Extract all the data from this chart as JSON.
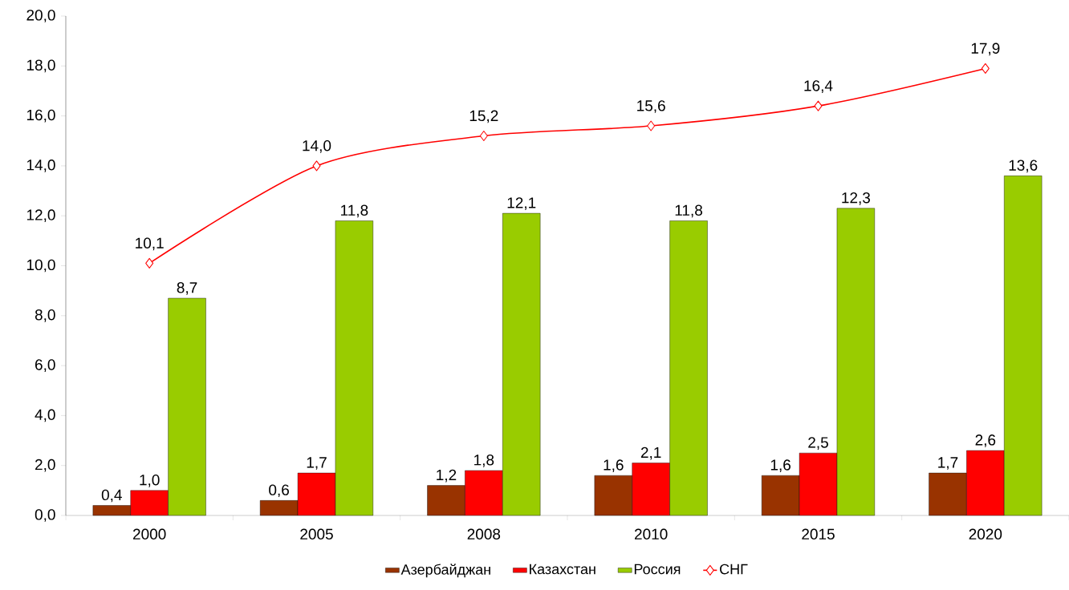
{
  "chart_data": {
    "type": "bar",
    "categories": [
      "2000",
      "2005",
      "2008",
      "2010",
      "2015",
      "2020"
    ],
    "series": [
      {
        "name": "Азербайджан",
        "color": "#993300",
        "values": [
          0.4,
          0.6,
          1.2,
          1.6,
          1.6,
          1.7
        ],
        "value_labels": [
          "0,4",
          "0,6",
          "1,2",
          "1,6",
          "1,6",
          "1,7"
        ]
      },
      {
        "name": "Казахстан",
        "color": "#ff0000",
        "values": [
          1.0,
          1.7,
          1.8,
          2.1,
          2.5,
          2.6
        ],
        "value_labels": [
          "1,0",
          "1,7",
          "1,8",
          "2,1",
          "2,5",
          "2,6"
        ]
      },
      {
        "name": "Россия",
        "color": "#99cc00",
        "values": [
          8.7,
          11.8,
          12.1,
          11.8,
          12.3,
          13.6
        ],
        "value_labels": [
          "8,7",
          "11,8",
          "12,1",
          "11,8",
          "12,3",
          "13,6"
        ]
      },
      {
        "name": "СНГ",
        "type": "line",
        "color": "#ff0000",
        "marker": "diamond",
        "values": [
          10.1,
          14.0,
          15.2,
          15.6,
          16.4,
          17.9
        ],
        "value_labels": [
          "10,1",
          "14,0",
          "15,2",
          "15,6",
          "16,4",
          "17,9"
        ]
      }
    ],
    "ylim": [
      0,
      20
    ],
    "yticks": [
      {
        "value": 0,
        "label": "0,0"
      },
      {
        "value": 2,
        "label": "2,0"
      },
      {
        "value": 4,
        "label": "4,0"
      },
      {
        "value": 6,
        "label": "6,0"
      },
      {
        "value": 8,
        "label": "8,0"
      },
      {
        "value": 10,
        "label": "10,0"
      },
      {
        "value": 12,
        "label": "12,0"
      },
      {
        "value": 14,
        "label": "14,0"
      },
      {
        "value": 16,
        "label": "16,0"
      },
      {
        "value": 18,
        "label": "18,0"
      },
      {
        "value": 20,
        "label": "20,0"
      }
    ],
    "grid": false,
    "legend": "bottom"
  }
}
